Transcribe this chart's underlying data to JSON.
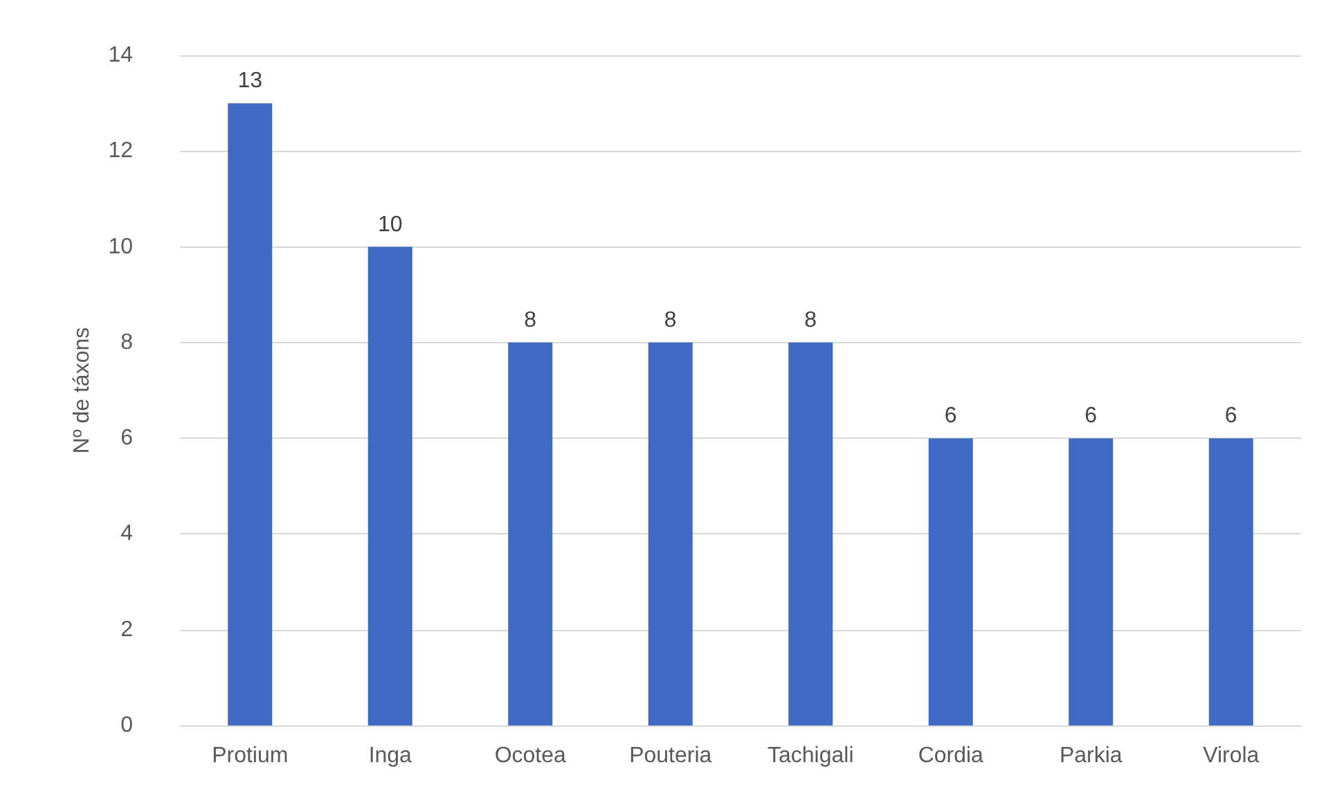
{
  "chart_data": {
    "type": "bar",
    "ylabel": "Nº de táxons",
    "categories": [
      "Protium",
      "Inga",
      "Ocotea",
      "Pouteria",
      "Tachigali",
      "Cordia",
      "Parkia",
      "Virola"
    ],
    "values": [
      13,
      10,
      8,
      8,
      8,
      6,
      6,
      6
    ],
    "color": "#3f69c2",
    "ylim": [
      0,
      14
    ],
    "yticks": [
      0,
      2,
      4,
      6,
      8,
      10,
      12,
      14
    ],
    "grid": "y",
    "data_labels": true
  }
}
